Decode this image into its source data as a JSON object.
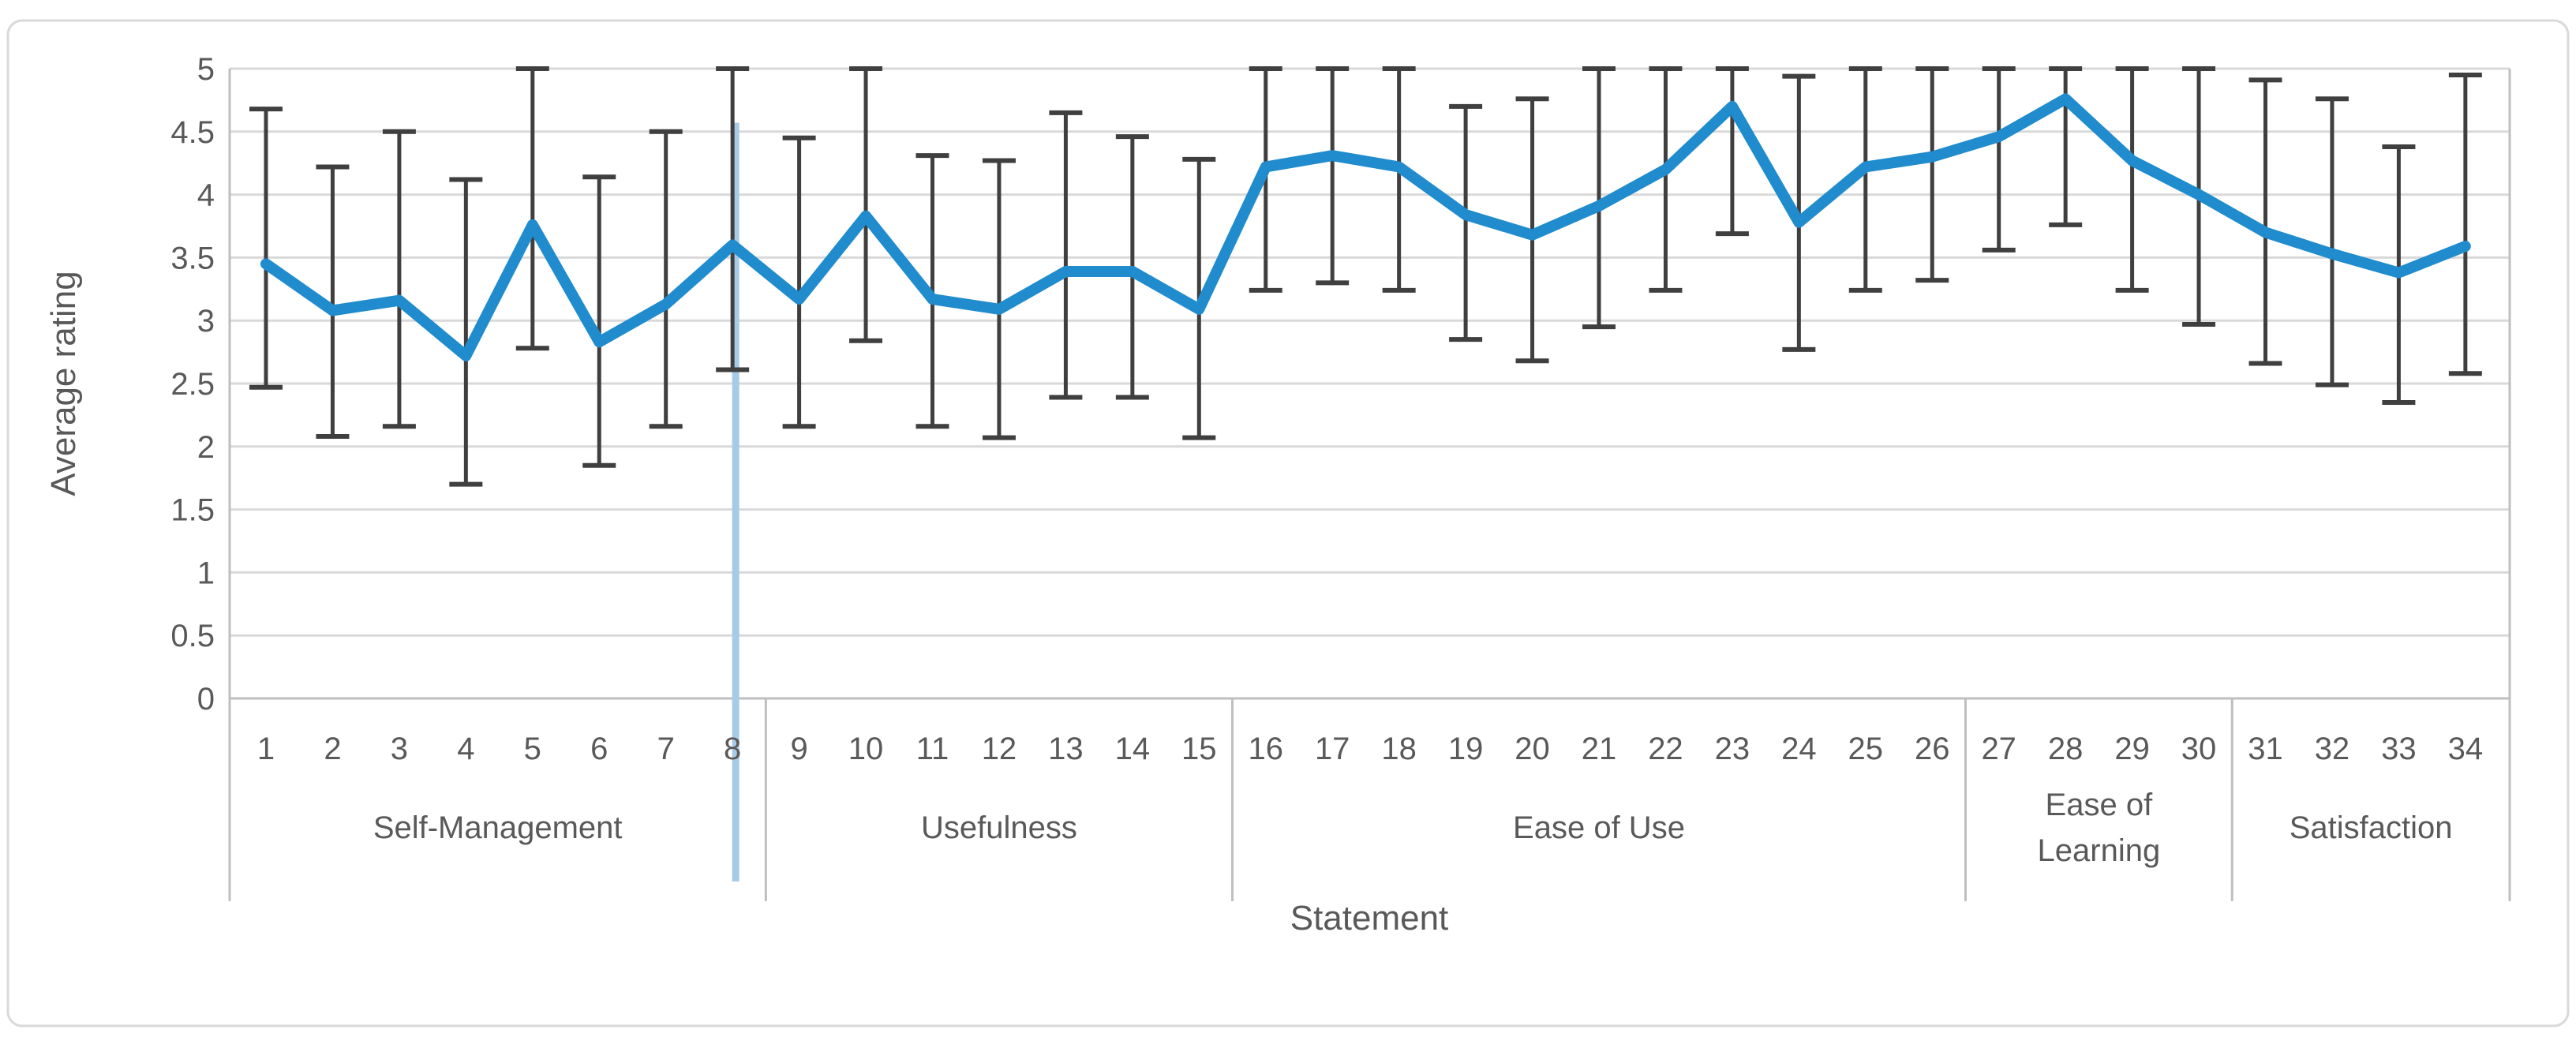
{
  "chart_data": {
    "type": "line",
    "title": "",
    "xlabel": "Statement",
    "ylabel": "Average rating",
    "ylim": [
      0,
      5
    ],
    "y_tick_step": 0.5,
    "y_ticks": [
      "0",
      "0.5",
      "1",
      "1.5",
      "2",
      "2.5",
      "3",
      "3.5",
      "4",
      "4.5",
      "5"
    ],
    "grid": true,
    "legend": "none",
    "categories": [
      "1",
      "2",
      "3",
      "4",
      "5",
      "6",
      "7",
      "8",
      "9",
      "10",
      "11",
      "12",
      "13",
      "14",
      "15",
      "16",
      "17",
      "18",
      "19",
      "20",
      "21",
      "22",
      "23",
      "24",
      "25",
      "26",
      "27",
      "28",
      "29",
      "30",
      "31",
      "32",
      "33",
      "34"
    ],
    "series": [
      {
        "name": "Average rating",
        "values": [
          3.45,
          3.08,
          3.16,
          2.72,
          3.76,
          2.83,
          3.13,
          3.6,
          3.17,
          3.83,
          3.17,
          3.09,
          3.39,
          3.39,
          3.09,
          4.22,
          4.31,
          4.22,
          3.84,
          3.68,
          3.91,
          4.2,
          4.7,
          3.78,
          4.22,
          4.3,
          4.46,
          4.76,
          4.27,
          4.0,
          3.7,
          3.53,
          3.38,
          3.59
        ],
        "error_low": [
          2.47,
          2.08,
          2.16,
          1.7,
          2.78,
          1.85,
          2.16,
          2.61,
          2.16,
          2.84,
          2.16,
          2.07,
          2.39,
          2.39,
          2.07,
          3.24,
          3.3,
          3.24,
          2.85,
          2.68,
          2.95,
          3.24,
          3.69,
          2.77,
          3.24,
          3.32,
          3.56,
          3.76,
          3.24,
          2.97,
          2.66,
          2.49,
          2.35,
          2.58
        ],
        "error_high": [
          4.68,
          4.22,
          4.5,
          4.12,
          5.0,
          4.14,
          4.5,
          5.0,
          4.45,
          5.0,
          4.31,
          4.27,
          4.65,
          4.46,
          4.28,
          5.0,
          5.0,
          5.0,
          4.7,
          4.76,
          5.0,
          5.0,
          5.0,
          4.94,
          5.0,
          5.0,
          5.0,
          5.0,
          5.0,
          5.0,
          4.91,
          4.76,
          4.38,
          4.95
        ]
      }
    ],
    "groups": [
      {
        "label": "Self-Management",
        "from": 1,
        "to": 8
      },
      {
        "label": "Usefulness",
        "from": 9,
        "to": 15
      },
      {
        "label": "Ease of Use",
        "from": 16,
        "to": 26
      },
      {
        "label": "Ease of\nLearning",
        "from": 27,
        "to": 30
      },
      {
        "label": "Satisfaction",
        "from": 31,
        "to": 34
      }
    ],
    "stray_line": {
      "at_category": "8",
      "from_value": 4.57,
      "below_axis": true
    },
    "colors": {
      "line": "#208ccd",
      "stray_line": "#a6cbe8",
      "error_bar": "#3f3f3f",
      "gridline": "#d9d9d9",
      "axis": "#bfbfbf",
      "text": "#595959",
      "border": "#d9d9d9",
      "background": "#ffffff"
    }
  }
}
